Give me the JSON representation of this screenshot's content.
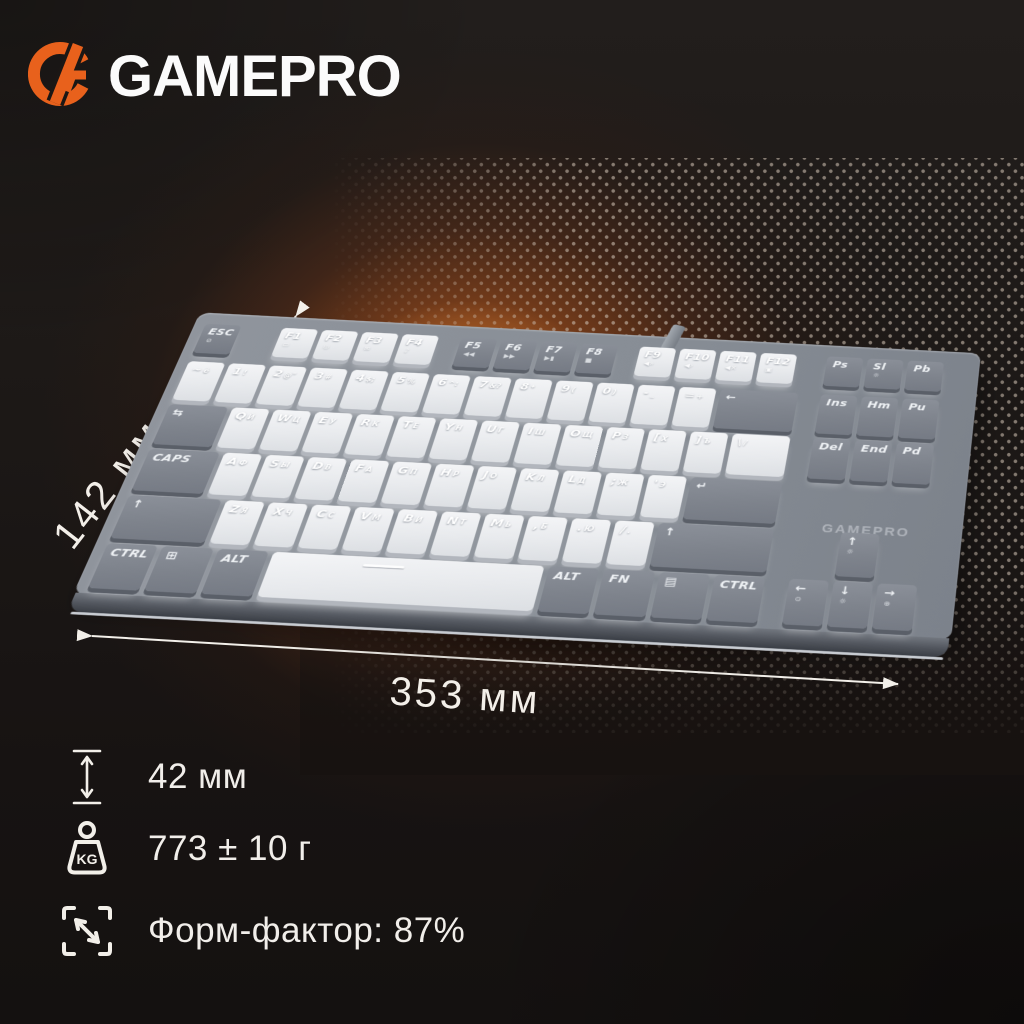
{
  "brand": {
    "name": "GAMEPRO"
  },
  "colors": {
    "accent_orange": "#E8611C",
    "glow_orange": "#C05A1E",
    "background_dark": "#1B1715",
    "key_dark": "#80858E",
    "key_light": "#EEF0F3",
    "case_gray": "#8A9098",
    "text_light": "#F2EFE9"
  },
  "dimensions": {
    "height": "142 мм",
    "width": "353 мм"
  },
  "specs": [
    {
      "icon": "height-arrow-icon",
      "text": "42 мм"
    },
    {
      "icon": "weight-kg-icon",
      "text": "773 ± 10 г"
    },
    {
      "icon": "form-factor-icon",
      "text": "Форм-фактор: 87%"
    }
  ],
  "keyboard": {
    "case_print": "GAMEPRO",
    "rows": [
      {
        "main": [
          {
            "t": "ESC",
            "b": "⊘",
            "c": "d",
            "w": 1,
            "n": "esc"
          },
          {
            "g": 0.9
          },
          {
            "t": "F1",
            "b": "▭",
            "c": "w",
            "w": 1,
            "n": "f1"
          },
          {
            "t": "F2",
            "b": "◎",
            "c": "w",
            "w": 1,
            "n": "f2"
          },
          {
            "t": "F3",
            "b": "✉",
            "c": "w",
            "w": 1,
            "n": "f3"
          },
          {
            "t": "F4",
            "b": "♪",
            "c": "w",
            "w": 1,
            "n": "f4"
          },
          {
            "g": 0.45
          },
          {
            "t": "F5",
            "b": "◀◀",
            "c": "d",
            "w": 1,
            "n": "f5"
          },
          {
            "t": "F6",
            "b": "▶▶",
            "c": "d",
            "w": 1,
            "n": "f6"
          },
          {
            "t": "F7",
            "b": "▶▮",
            "c": "d",
            "w": 1,
            "n": "f7"
          },
          {
            "t": "F8",
            "b": "■",
            "c": "d",
            "w": 1,
            "n": "f8"
          },
          {
            "g": 0.45
          },
          {
            "t": "F9",
            "b": "◀»",
            "c": "w",
            "w": 1,
            "n": "f9"
          },
          {
            "t": "F10",
            "b": "◀›",
            "c": "w",
            "w": 1,
            "n": "f10"
          },
          {
            "t": "F11",
            "b": "◀×",
            "c": "w",
            "w": 1,
            "n": "f11"
          },
          {
            "t": "F12",
            "b": "▣",
            "c": "w",
            "w": 1,
            "n": "f12"
          },
          {
            "g": 0.2
          }
        ],
        "nav": [
          {
            "t": "Ps",
            "c": "d",
            "w": 1,
            "n": "print-screen"
          },
          {
            "t": "Sl",
            "b": "☼",
            "c": "d",
            "w": 1,
            "n": "scroll-lock"
          },
          {
            "t": "Pb",
            "c": "d",
            "w": 1,
            "n": "pause-break"
          }
        ]
      },
      {
        "main": [
          {
            "t": "~",
            "s": "ё",
            "c": "w",
            "w": 1,
            "n": "tilde"
          },
          {
            "t": "1",
            "s": "!",
            "c": "w",
            "w": 1,
            "n": "1"
          },
          {
            "t": "2",
            "s": "@\"",
            "c": "w",
            "w": 1,
            "n": "2"
          },
          {
            "t": "3",
            "s": "#",
            "c": "w",
            "w": 1,
            "n": "3"
          },
          {
            "t": "4",
            "s": "$;",
            "c": "w",
            "w": 1,
            "n": "4"
          },
          {
            "t": "5",
            "s": "%",
            "c": "w",
            "w": 1,
            "n": "5"
          },
          {
            "t": "6",
            "s": "^:",
            "c": "w",
            "w": 1,
            "n": "6"
          },
          {
            "t": "7",
            "s": "&?",
            "c": "w",
            "w": 1,
            "n": "7"
          },
          {
            "t": "8",
            "s": "*",
            "c": "w",
            "w": 1,
            "n": "8"
          },
          {
            "t": "9",
            "s": "(",
            "c": "w",
            "w": 1,
            "n": "9"
          },
          {
            "t": "0",
            "s": ")",
            "c": "w",
            "w": 1,
            "n": "0"
          },
          {
            "t": "-",
            "s": "_",
            "c": "w",
            "w": 1,
            "n": "minus"
          },
          {
            "t": "=",
            "s": "+",
            "c": "w",
            "w": 1,
            "n": "equals"
          },
          {
            "t": "←",
            "c": "d",
            "w": 2,
            "n": "backspace"
          }
        ],
        "nav": [
          {
            "t": "Ins",
            "c": "d",
            "w": 1,
            "n": "insert"
          },
          {
            "t": "Hm",
            "c": "d",
            "w": 1,
            "n": "home"
          },
          {
            "t": "Pu",
            "c": "d",
            "w": 1,
            "n": "page-up"
          }
        ]
      },
      {
        "main": [
          {
            "t": "⇆",
            "c": "d",
            "w": 1.5,
            "n": "tab"
          },
          {
            "t": "Q",
            "s": "Й",
            "c": "w",
            "w": 1,
            "n": "q"
          },
          {
            "t": "W",
            "s": "Ц",
            "c": "w",
            "w": 1,
            "n": "w"
          },
          {
            "t": "E",
            "s": "У",
            "c": "w",
            "w": 1,
            "n": "e"
          },
          {
            "t": "R",
            "s": "К",
            "c": "w",
            "w": 1,
            "n": "r"
          },
          {
            "t": "T",
            "s": "Е",
            "c": "w",
            "w": 1,
            "n": "t"
          },
          {
            "t": "Y",
            "s": "Н",
            "c": "w",
            "w": 1,
            "n": "y"
          },
          {
            "t": "U",
            "s": "Г",
            "c": "w",
            "w": 1,
            "n": "u"
          },
          {
            "t": "I",
            "s": "Ш",
            "c": "w",
            "w": 1,
            "n": "i"
          },
          {
            "t": "O",
            "s": "Щ",
            "c": "w",
            "w": 1,
            "n": "o"
          },
          {
            "t": "P",
            "s": "З",
            "c": "w",
            "w": 1,
            "n": "p"
          },
          {
            "t": "[",
            "s": "Х",
            "c": "w",
            "w": 1,
            "n": "bracket-left"
          },
          {
            "t": "]",
            "s": "Ъ",
            "c": "w",
            "w": 1,
            "n": "bracket-right"
          },
          {
            "t": "\\",
            "s": "/",
            "c": "w",
            "w": 1.5,
            "n": "backslash"
          }
        ],
        "nav": [
          {
            "t": "Del",
            "c": "d",
            "w": 1,
            "n": "delete"
          },
          {
            "t": "End",
            "c": "d",
            "w": 1,
            "n": "end"
          },
          {
            "t": "Pd",
            "c": "d",
            "w": 1,
            "n": "page-down"
          }
        ]
      },
      {
        "main": [
          {
            "t": "CAPS",
            "c": "d",
            "w": 1.75,
            "n": "caps-lock"
          },
          {
            "t": "A",
            "s": "Ф",
            "c": "w",
            "w": 1,
            "n": "a"
          },
          {
            "t": "S",
            "s": "Ы",
            "c": "w",
            "w": 1,
            "n": "s"
          },
          {
            "t": "D",
            "s": "В",
            "c": "w",
            "w": 1,
            "n": "d"
          },
          {
            "t": "F",
            "s": "А",
            "c": "w",
            "w": 1,
            "n": "f"
          },
          {
            "t": "G",
            "s": "П",
            "c": "w",
            "w": 1,
            "n": "g"
          },
          {
            "t": "H",
            "s": "Р",
            "c": "w",
            "w": 1,
            "n": "h"
          },
          {
            "t": "J",
            "s": "О",
            "c": "w",
            "w": 1,
            "n": "j"
          },
          {
            "t": "K",
            "s": "Л",
            "c": "w",
            "w": 1,
            "n": "k"
          },
          {
            "t": "L",
            "s": "Д",
            "c": "w",
            "w": 1,
            "n": "l"
          },
          {
            "t": ";",
            "s": "Ж",
            "c": "w",
            "w": 1,
            "n": "semicolon"
          },
          {
            "t": "'",
            "s": "Э",
            "c": "w",
            "w": 1,
            "n": "quote"
          },
          {
            "t": "↵",
            "c": "d",
            "w": 2.25,
            "n": "enter"
          }
        ],
        "nav": []
      },
      {
        "main": [
          {
            "t": "↑",
            "c": "d",
            "w": 2.25,
            "n": "shift-left"
          },
          {
            "t": "Z",
            "s": "Я",
            "c": "w",
            "w": 1,
            "n": "z"
          },
          {
            "t": "X",
            "s": "Ч",
            "c": "w",
            "w": 1,
            "n": "x"
          },
          {
            "t": "C",
            "s": "С",
            "c": "w",
            "w": 1,
            "n": "c"
          },
          {
            "t": "V",
            "s": "М",
            "c": "w",
            "w": 1,
            "n": "v"
          },
          {
            "t": "B",
            "s": "И",
            "c": "w",
            "w": 1,
            "n": "b"
          },
          {
            "t": "N",
            "s": "Т",
            "c": "w",
            "w": 1,
            "n": "n"
          },
          {
            "t": "M",
            "s": "Ь",
            "c": "w",
            "w": 1,
            "n": "m"
          },
          {
            "t": ",",
            "s": "Б",
            "c": "w",
            "w": 1,
            "n": "comma"
          },
          {
            "t": ".",
            "s": "Ю",
            "c": "w",
            "w": 1,
            "n": "period"
          },
          {
            "t": "/",
            "s": ".",
            "c": "w",
            "w": 1,
            "n": "slash"
          },
          {
            "t": "↑",
            "c": "d",
            "w": 2.75,
            "n": "shift-right"
          }
        ],
        "navOffset": 1,
        "nav": [
          {
            "t": "↑",
            "b": "☼",
            "c": "d",
            "w": 1,
            "n": "arrow-up"
          }
        ]
      },
      {
        "main": [
          {
            "t": "CTRL",
            "c": "d",
            "w": 1.25,
            "n": "ctrl-left"
          },
          {
            "t": "⊞",
            "c": "d",
            "w": 1.25,
            "n": "win"
          },
          {
            "t": "ALT",
            "c": "d",
            "w": 1.25,
            "n": "alt-left"
          },
          {
            "t": "",
            "c": "w",
            "w": 6.25,
            "n": "space",
            "sp": 1
          },
          {
            "t": "ALT",
            "c": "d",
            "w": 1.25,
            "n": "alt-right"
          },
          {
            "t": "FN",
            "c": "d",
            "w": 1.25,
            "n": "fn"
          },
          {
            "t": "▤",
            "c": "d",
            "w": 1.25,
            "n": "menu"
          },
          {
            "t": "CTRL",
            "c": "d",
            "w": 1.25,
            "n": "ctrl-right"
          }
        ],
        "nav": [
          {
            "t": "←",
            "b": "⊙",
            "c": "d",
            "w": 1,
            "n": "arrow-left"
          },
          {
            "t": "↓",
            "b": "☼",
            "c": "d",
            "w": 1,
            "n": "arrow-down"
          },
          {
            "t": "→",
            "b": "⊕",
            "c": "d",
            "w": 1,
            "n": "arrow-right"
          }
        ]
      }
    ]
  }
}
